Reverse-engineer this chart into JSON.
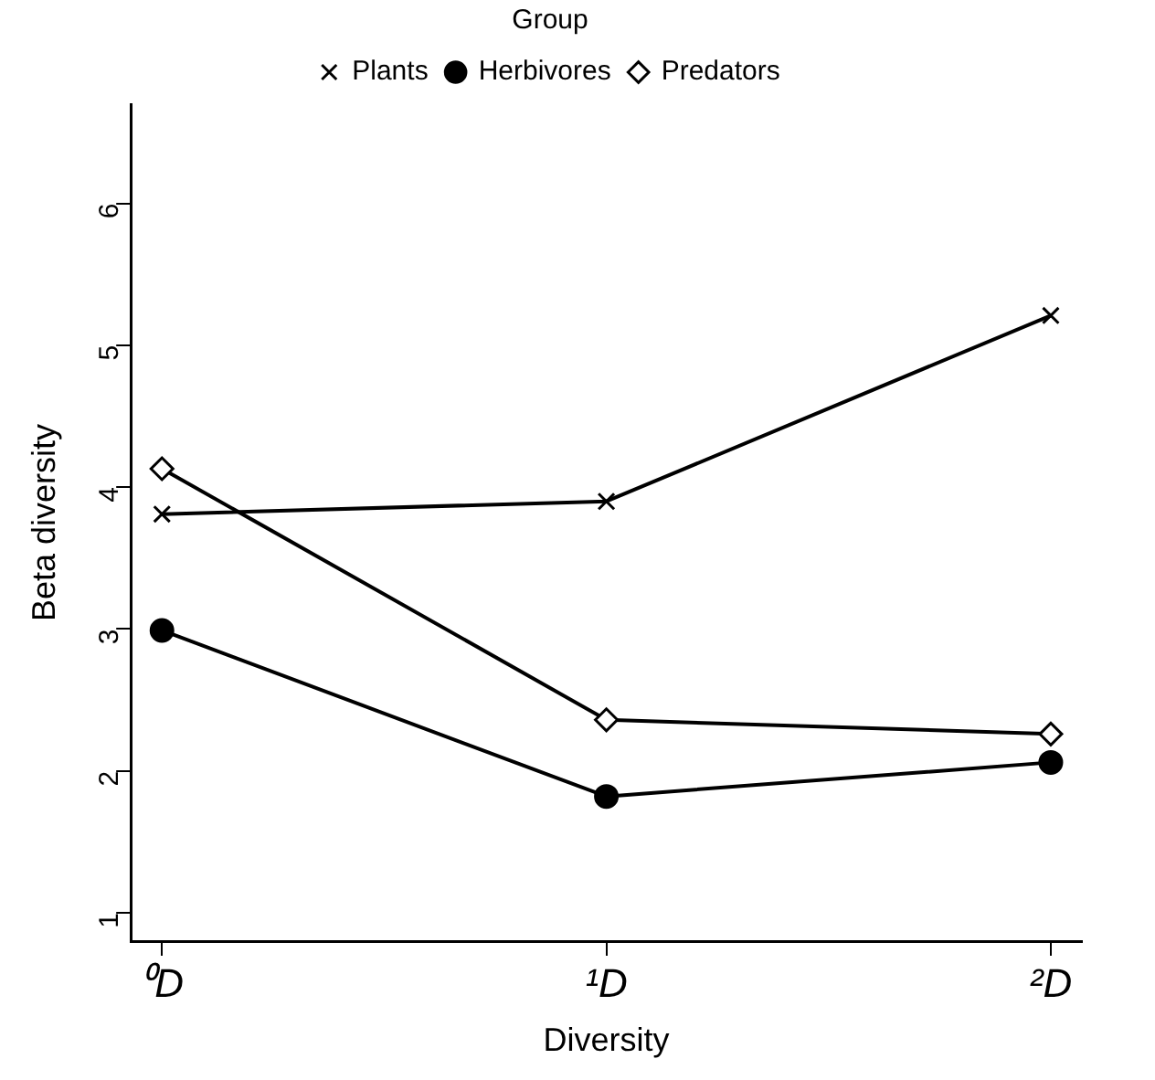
{
  "chart_data": {
    "type": "line",
    "xlabel": "Diversity",
    "ylabel": "Beta diversity",
    "legend_title": "Group",
    "legend": "top",
    "grid": false,
    "categories": [
      "⁰D",
      "¹D",
      "²D"
    ],
    "ylim": [
      0.8,
      6.7
    ],
    "yticks": [
      1,
      2,
      3,
      4,
      5,
      6
    ],
    "series": [
      {
        "name": "Plants",
        "color": "#000000",
        "marker": "cross",
        "values": [
          3.81,
          3.9,
          5.21
        ]
      },
      {
        "name": "Herbivores",
        "color": "#000000",
        "marker": "circle",
        "values": [
          2.99,
          1.82,
          2.06
        ]
      },
      {
        "name": "Predators",
        "color": "#000000",
        "marker": "diamond",
        "values": [
          4.13,
          2.36,
          2.26
        ]
      }
    ]
  }
}
